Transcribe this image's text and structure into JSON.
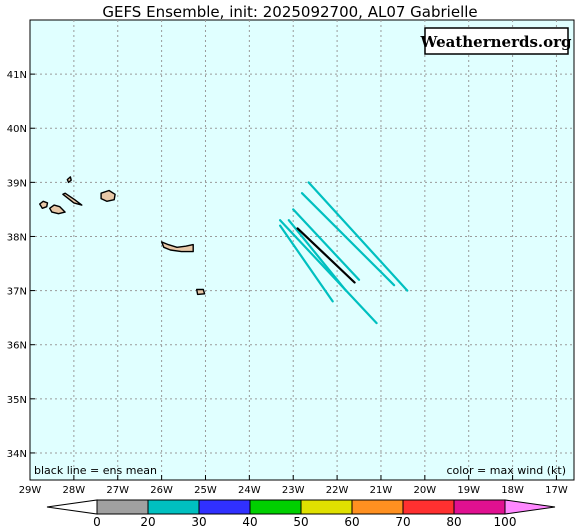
{
  "title": "GEFS Ensemble, init: 2025092700, AL07 Gabrielle",
  "brand": "Weathernerds.org",
  "note_left": "black line = ens mean",
  "note_right": "color = max wind (kt)",
  "map": {
    "lon_range": [
      -29,
      -16.6
    ],
    "lat_range": [
      33.5,
      42
    ],
    "ocean_color": "#e0ffff",
    "grid": true,
    "lon_ticks": [
      {
        "lon": -29,
        "label": "29W"
      },
      {
        "lon": -28,
        "label": "28W"
      },
      {
        "lon": -27,
        "label": "27W"
      },
      {
        "lon": -26,
        "label": "26W"
      },
      {
        "lon": -25,
        "label": "25W"
      },
      {
        "lon": -24,
        "label": "24W"
      },
      {
        "lon": -23,
        "label": "23W"
      },
      {
        "lon": -22,
        "label": "22W"
      },
      {
        "lon": -21,
        "label": "21W"
      },
      {
        "lon": -20,
        "label": "20W"
      },
      {
        "lon": -19,
        "label": "19W"
      },
      {
        "lon": -18,
        "label": "18W"
      },
      {
        "lon": -17,
        "label": "17W"
      }
    ],
    "lat_ticks": [
      {
        "lat": 34,
        "label": "34N"
      },
      {
        "lat": 35,
        "label": "35N"
      },
      {
        "lat": 36,
        "label": "36N"
      },
      {
        "lat": 37,
        "label": "37N"
      },
      {
        "lat": 38,
        "label": "38N"
      },
      {
        "lat": 39,
        "label": "39N"
      },
      {
        "lat": 40,
        "label": "40N"
      },
      {
        "lat": 41,
        "label": "41N"
      }
    ]
  },
  "islands": [
    {
      "name": "flores",
      "lonlat": [
        [
          -28.15,
          39.05
        ],
        [
          -28.08,
          39.1
        ],
        [
          -28.06,
          39.04
        ],
        [
          -28.12,
          39.0
        ]
      ]
    },
    {
      "name": "corvo-west",
      "lonlat": [
        [
          -28.78,
          38.6
        ],
        [
          -28.7,
          38.65
        ],
        [
          -28.6,
          38.62
        ],
        [
          -28.62,
          38.55
        ],
        [
          -28.72,
          38.52
        ]
      ]
    },
    {
      "name": "faial",
      "lonlat": [
        [
          -28.55,
          38.52
        ],
        [
          -28.45,
          38.58
        ],
        [
          -28.32,
          38.55
        ],
        [
          -28.2,
          38.45
        ],
        [
          -28.35,
          38.42
        ],
        [
          -28.5,
          38.45
        ]
      ]
    },
    {
      "name": "pico",
      "lonlat": [
        [
          -28.25,
          38.78
        ],
        [
          -28.0,
          38.62
        ],
        [
          -27.82,
          38.58
        ],
        [
          -27.98,
          38.68
        ],
        [
          -28.2,
          38.8
        ]
      ]
    },
    {
      "name": "sao-jorge",
      "lonlat": [
        [
          -27.38,
          38.8
        ],
        [
          -27.2,
          38.85
        ],
        [
          -27.06,
          38.78
        ],
        [
          -27.08,
          38.68
        ],
        [
          -27.25,
          38.65
        ],
        [
          -27.38,
          38.7
        ]
      ]
    },
    {
      "name": "graciosa",
      "lonlat": [
        [
          -26.0,
          37.9
        ],
        [
          -25.85,
          37.85
        ],
        [
          -25.65,
          37.8
        ],
        [
          -25.45,
          37.82
        ],
        [
          -25.28,
          37.85
        ],
        [
          -25.28,
          37.72
        ],
        [
          -25.55,
          37.72
        ],
        [
          -25.8,
          37.75
        ],
        [
          -25.95,
          37.8
        ]
      ]
    },
    {
      "name": "santa-maria",
      "lonlat": [
        [
          -25.2,
          37.02
        ],
        [
          -25.05,
          37.02
        ],
        [
          -25.02,
          36.94
        ],
        [
          -25.18,
          36.93
        ]
      ]
    }
  ],
  "tracks": [
    {
      "color": "#00c0c0",
      "lonlat": [
        [
          -22.65,
          39.0
        ],
        [
          -20.4,
          37.0
        ]
      ]
    },
    {
      "color": "#00c0c0",
      "lonlat": [
        [
          -22.8,
          38.8
        ],
        [
          -20.7,
          37.1
        ]
      ]
    },
    {
      "color": "#00c0c0",
      "lonlat": [
        [
          -23.0,
          38.5
        ],
        [
          -21.5,
          37.2
        ]
      ]
    },
    {
      "color": "#00c0c0",
      "lonlat": [
        [
          -23.3,
          38.3
        ],
        [
          -21.1,
          36.4
        ]
      ]
    },
    {
      "color": "#00c0c0",
      "lonlat": [
        [
          -23.1,
          38.3
        ],
        [
          -21.8,
          37.0
        ]
      ]
    },
    {
      "color": "#00c0c0",
      "lonlat": [
        [
          -23.3,
          38.2
        ],
        [
          -22.1,
          36.8
        ]
      ]
    },
    {
      "color": "#000000",
      "lonlat": [
        [
          -22.9,
          38.15
        ],
        [
          -21.6,
          37.15
        ]
      ]
    }
  ],
  "colorbar": {
    "bins": [
      {
        "label": "0",
        "color": "#ffffff"
      },
      {
        "label": "20",
        "color": "#a0a0a0"
      },
      {
        "label": "30",
        "color": "#00c0c0"
      },
      {
        "label": "40",
        "color": "#3030ff"
      },
      {
        "label": "50",
        "color": "#00d000"
      },
      {
        "label": "60",
        "color": "#e0e000"
      },
      {
        "label": "70",
        "color": "#ff9020"
      },
      {
        "label": "80",
        "color": "#ff3030"
      },
      {
        "label": "100",
        "color": "#e01090"
      },
      {
        "label": "",
        "color": "#ff88ff"
      }
    ]
  }
}
